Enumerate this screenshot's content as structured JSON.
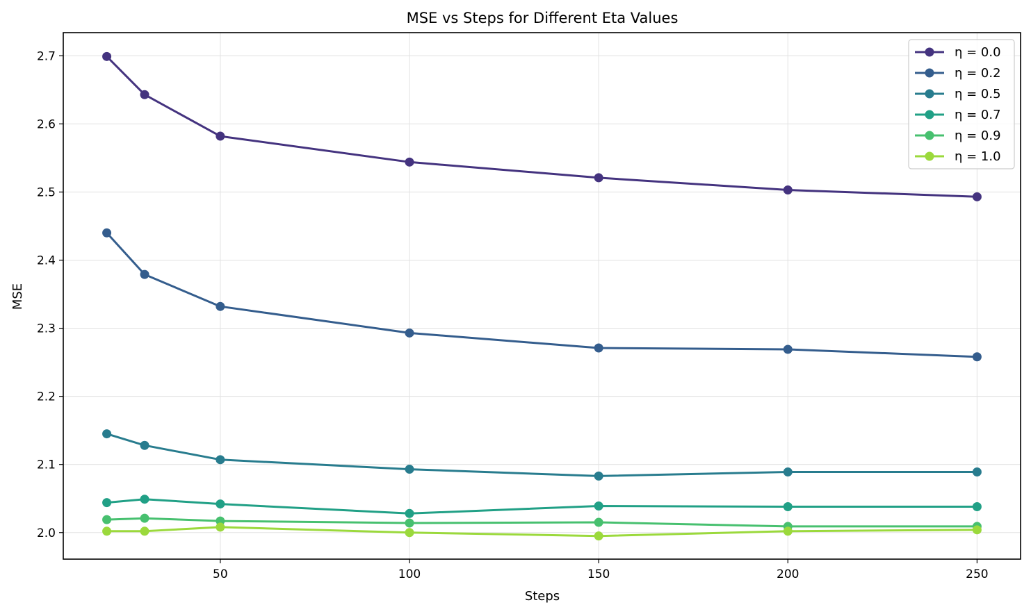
{
  "chart_data": {
    "type": "line",
    "title": "MSE vs Steps for Different Eta Values",
    "xlabel": "Steps",
    "ylabel": "MSE",
    "x": [
      20,
      30,
      50,
      100,
      150,
      200,
      250
    ],
    "xlim": [
      8.5,
      261.5
    ],
    "ylim": [
      1.961,
      2.734
    ],
    "xticks": [
      50,
      100,
      150,
      200,
      250
    ],
    "yticks": [
      2.0,
      2.1,
      2.2,
      2.3,
      2.4,
      2.5,
      2.6,
      2.7
    ],
    "ytick_labels": [
      "2.0",
      "2.1",
      "2.2",
      "2.3",
      "2.4",
      "2.5",
      "2.6",
      "2.7"
    ],
    "grid": true,
    "legend_position": "top-right",
    "series": [
      {
        "name": "η = 0.0",
        "color": "#44337f",
        "values": [
          2.699,
          2.643,
          2.582,
          2.544,
          2.521,
          2.503,
          2.493
        ]
      },
      {
        "name": "η = 0.2",
        "color": "#345d8d",
        "values": [
          2.44,
          2.379,
          2.332,
          2.293,
          2.271,
          2.269,
          2.258
        ]
      },
      {
        "name": "η = 0.5",
        "color": "#287c8e",
        "values": [
          2.145,
          2.128,
          2.107,
          2.093,
          2.083,
          2.089,
          2.089
        ]
      },
      {
        "name": "η = 0.7",
        "color": "#21a086",
        "values": [
          2.044,
          2.049,
          2.042,
          2.028,
          2.039,
          2.038,
          2.038
        ]
      },
      {
        "name": "η = 0.9",
        "color": "#47c06f",
        "values": [
          2.019,
          2.021,
          2.017,
          2.014,
          2.015,
          2.009,
          2.009
        ]
      },
      {
        "name": "η = 1.0",
        "color": "#9bd93c",
        "values": [
          2.002,
          2.002,
          2.008,
          2.0,
          1.995,
          2.002,
          2.004
        ]
      }
    ]
  }
}
